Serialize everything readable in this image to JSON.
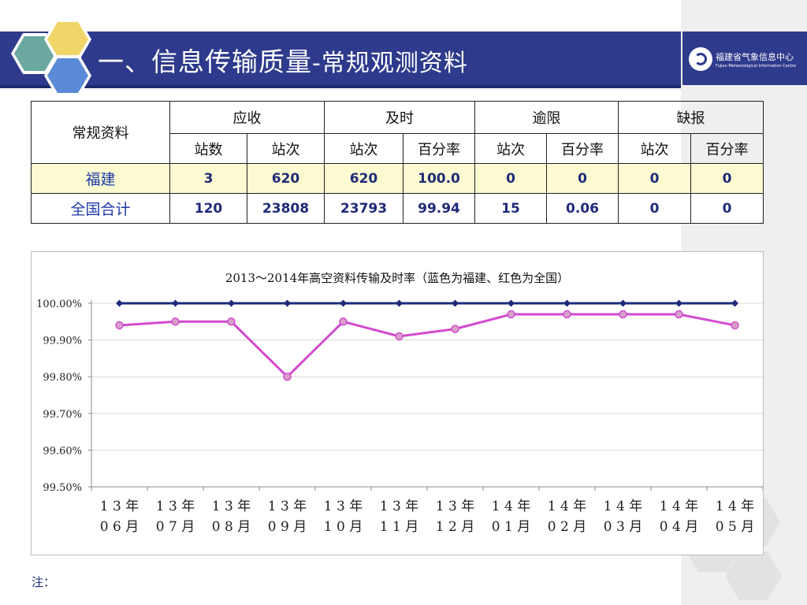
{
  "header": {
    "title_main": "一、信息传输质量",
    "title_sub": "-常规观测资料",
    "logo_text": "福建省气象信息中心",
    "logo_subtext": "Fujian Meteorological Information Centre",
    "bar_color": "#2e3a8c",
    "hex_colors": [
      "#6aa8a0",
      "#f0d668",
      "#5b8ad9"
    ]
  },
  "table": {
    "corner": "常规资料",
    "groups": [
      "应收",
      "及时",
      "逾限",
      "缺报"
    ],
    "subheaders": [
      "站数",
      "站次",
      "站次",
      "百分率",
      "站次",
      "百分率",
      "站次",
      "百分率"
    ],
    "rows": [
      {
        "name": "福建",
        "cells": [
          "3",
          "620",
          "620",
          "100.0",
          "0",
          "0",
          "0",
          "0"
        ]
      },
      {
        "name": "全国合计",
        "cells": [
          "120",
          "23808",
          "23793",
          "99.94",
          "15",
          "0.06",
          "0",
          "0"
        ]
      }
    ]
  },
  "chart_data": {
    "type": "line",
    "title": "2013～2014年高空资料传输及时率（蓝色为福建、红色为全国）",
    "categories": [
      "13年06月",
      "13年07月",
      "13年08月",
      "13年09月",
      "13年10月",
      "13年11月",
      "13年12月",
      "14年01月",
      "14年02月",
      "14年03月",
      "14年04月",
      "14年05月"
    ],
    "series": [
      {
        "values": [
          100.0,
          100.0,
          100.0,
          100.0,
          100.0,
          100.0,
          100.0,
          100.0,
          100.0,
          100.0,
          100.0,
          100.0
        ],
        "color": "#1f2a78"
      },
      {
        "values": [
          99.94,
          99.95,
          99.95,
          99.8,
          99.95,
          99.91,
          99.93,
          99.97,
          99.97,
          99.97,
          99.97,
          99.94
        ],
        "color": "#d24ad0"
      }
    ],
    "ylim": [
      99.5,
      100.0
    ],
    "yticks": [
      100.0,
      99.9,
      99.8,
      99.7,
      99.6,
      99.5
    ],
    "ytick_labels": [
      "100.00%",
      "99.90%",
      "99.80%",
      "99.70%",
      "99.60%",
      "99.50%"
    ],
    "grid": true,
    "legend": "none"
  },
  "note": "注："
}
